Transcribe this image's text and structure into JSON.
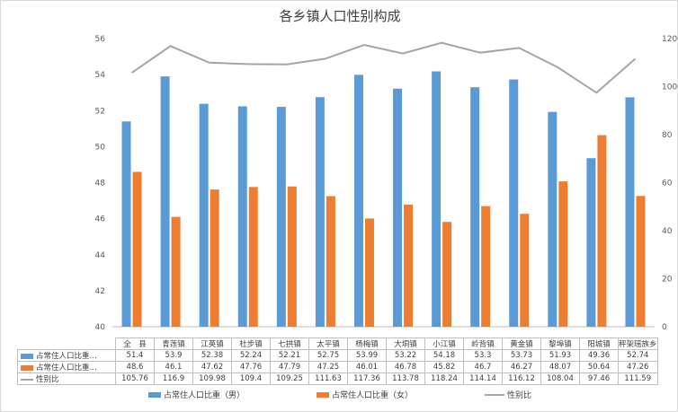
{
  "chart_data": {
    "type": "bar",
    "title": "各乡镇人口性别构成",
    "categories": [
      "全　县",
      "青莲镇",
      "江英镇",
      "杜步镇",
      "七拱镇",
      "太平镇",
      "杨梅镇",
      "大垌镇",
      "小江镇",
      "岭背镇",
      "黄金镇",
      "黎埠镇",
      "阳城镇",
      "秤架瑶族乡"
    ],
    "series": [
      {
        "name": "占常住人口比重（男）",
        "short": "占常住人口比重…",
        "type": "bar",
        "axis": "left",
        "color": "#5b9bd5",
        "values": [
          51.4,
          53.9,
          52.38,
          52.24,
          52.21,
          52.75,
          53.99,
          53.22,
          54.18,
          53.3,
          53.73,
          51.93,
          49.36,
          52.74
        ]
      },
      {
        "name": "占常住人口比重（女）",
        "short": "占常住人口比重…",
        "type": "bar",
        "axis": "left",
        "color": "#ed7d31",
        "values": [
          48.6,
          46.1,
          47.62,
          47.76,
          47.79,
          47.25,
          46.01,
          46.78,
          45.82,
          46.7,
          46.27,
          48.07,
          50.64,
          47.26
        ]
      },
      {
        "name": "性别比",
        "short": "性别比",
        "type": "line",
        "axis": "right",
        "color": "#a5a5a5",
        "values": [
          105.76,
          116.9,
          109.98,
          109.4,
          109.25,
          111.63,
          117.36,
          113.78,
          118.24,
          114.14,
          116.12,
          108.04,
          97.46,
          111.59
        ]
      }
    ],
    "y_left": {
      "min": 40,
      "max": 56,
      "step": 2,
      "ticks": [
        "40",
        "42",
        "44",
        "46",
        "48",
        "50",
        "52",
        "54",
        "56"
      ]
    },
    "y_right": {
      "min": 0,
      "max": 120,
      "step": 20,
      "ticks": [
        "0",
        "20",
        "40",
        "60",
        "80",
        "100",
        "120"
      ]
    },
    "grid": false,
    "legend": "bottom",
    "data_table": true
  }
}
